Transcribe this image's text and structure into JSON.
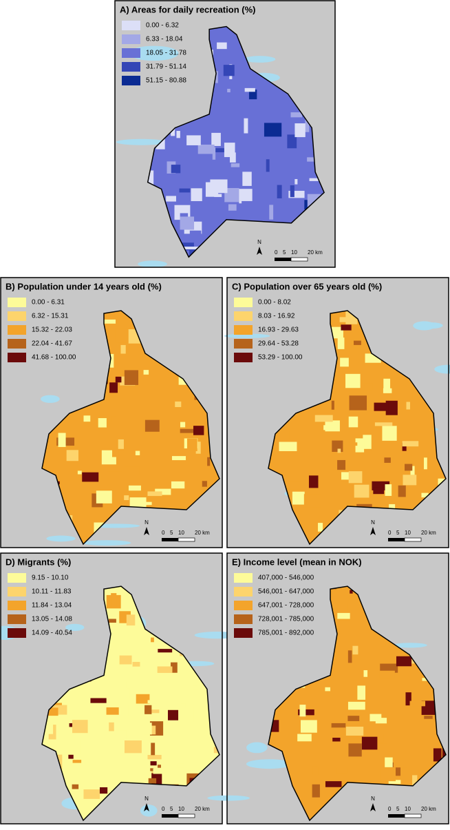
{
  "panels": [
    {
      "title": "A) Areas for daily recreation (%)",
      "legend": [
        {
          "label": "0.00 - 6.32",
          "color": "#dcdff7"
        },
        {
          "label": "6.33 - 18.04",
          "color": "#a3a8e6"
        },
        {
          "label": "18.05 - 31.78",
          "color": "#6870d6"
        },
        {
          "label": "31.79 - 51.14",
          "color": "#3446b6"
        },
        {
          "label": "51.15 - 80.88",
          "color": "#0b2b93"
        }
      ],
      "north": "N",
      "scale": [
        "0",
        "5",
        "10",
        "20 km"
      ]
    },
    {
      "title": "B) Population under 14 years old (%)",
      "legend": [
        {
          "label": "0.00 - 6.31",
          "color": "#fdfb99"
        },
        {
          "label": "6.32 - 15.31",
          "color": "#fdd46c"
        },
        {
          "label": "15.32 - 22.03",
          "color": "#f3a42b"
        },
        {
          "label": "22.04 - 41.67",
          "color": "#b6631b"
        },
        {
          "label": "41.68 - 100.00",
          "color": "#6b0b0b"
        }
      ],
      "north": "N",
      "scale": [
        "0",
        "5",
        "10",
        "20 km"
      ]
    },
    {
      "title": "C) Population over 65 years old (%)",
      "legend": [
        {
          "label": "0.00 - 8.02",
          "color": "#fdfb99"
        },
        {
          "label": "8.03 - 16.92",
          "color": "#fdd46c"
        },
        {
          "label": "16.93 - 29.63",
          "color": "#f3a42b"
        },
        {
          "label": "29.64 - 53.28",
          "color": "#b6631b"
        },
        {
          "label": "53.29 - 100.00",
          "color": "#6b0b0b"
        }
      ],
      "north": "N",
      "scale": [
        "0",
        "5",
        "10",
        "20 km"
      ]
    },
    {
      "title": "D) Migrants (%)",
      "legend": [
        {
          "label": "9.15 - 10.10",
          "color": "#fdfb99"
        },
        {
          "label": "10.11 - 11.83",
          "color": "#fdd46c"
        },
        {
          "label": "11.84 - 13.04",
          "color": "#f3a42b"
        },
        {
          "label": "13.05 - 14.08",
          "color": "#b6631b"
        },
        {
          "label": "14.09 - 40.54",
          "color": "#6b0b0b"
        }
      ],
      "north": "N",
      "scale": [
        "0",
        "5",
        "10",
        "20 km"
      ]
    },
    {
      "title": "E) Income level (mean in NOK)",
      "legend": [
        {
          "label": "407,000 - 546,000",
          "color": "#fdfb99"
        },
        {
          "label": "546,001 - 647,000",
          "color": "#fdd46c"
        },
        {
          "label": "647,001 - 728,000",
          "color": "#f3a42b"
        },
        {
          "label": "728,001 - 785,000",
          "color": "#b6631b"
        },
        {
          "label": "785,001 - 892,000",
          "color": "#6b0b0b"
        }
      ],
      "north": "N",
      "scale": [
        "0",
        "5",
        "10",
        "20 km"
      ]
    }
  ]
}
